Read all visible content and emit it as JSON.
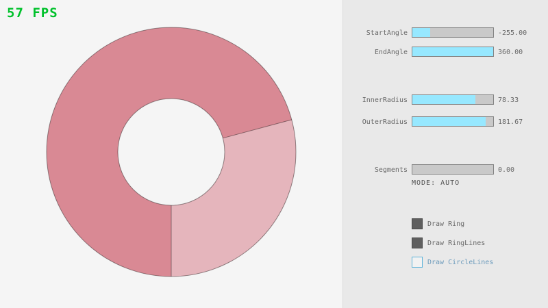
{
  "fps": {
    "text": "57 FPS"
  },
  "colors": {
    "canvas_bg": "#f5f5f5",
    "panel_bg": "#e9e9e9",
    "panel_border": "#dadada",
    "bar_bg": "#c9c9c9",
    "bar_border": "#838383",
    "bar_fill": "#97e8ff",
    "label_gray": "#686868",
    "mode_gray": "#505050",
    "fps_green": "#00c12b",
    "ring_dark": "#d98994",
    "ring_light": "#e5b5bc",
    "check_fill": "#5f5f5f",
    "check_border": "#6a6a6a",
    "check_fill_border": "#494949",
    "accent_border": "#5bb2d9",
    "accent_text": "#6c9bbc"
  },
  "panel": {
    "sliders": [
      {
        "label": "StartAngle",
        "value": "-255.00",
        "fill": 0.22
      },
      {
        "label": "EndAngle",
        "value": "360.00",
        "fill": 1
      },
      {
        "label": "InnerRadius",
        "value": "78.33",
        "fill": 0.78
      },
      {
        "label": "OuterRadius",
        "value": "181.67",
        "fill": 0.91
      },
      {
        "label": "Segments",
        "value": "0.00",
        "fill": 0
      }
    ],
    "mode_text": "MODE: AUTO",
    "checkboxes": [
      {
        "label": "Draw Ring",
        "checked": true
      },
      {
        "label": "Draw RingLines",
        "checked": true
      },
      {
        "label": "Draw CircleLines",
        "checked": false
      }
    ]
  },
  "ring": {
    "start_angle": -255.0,
    "end_angle": 360.0,
    "inner_radius": 78.33,
    "outer_radius": 181.67,
    "segments": 0,
    "mode": "AUTO"
  }
}
